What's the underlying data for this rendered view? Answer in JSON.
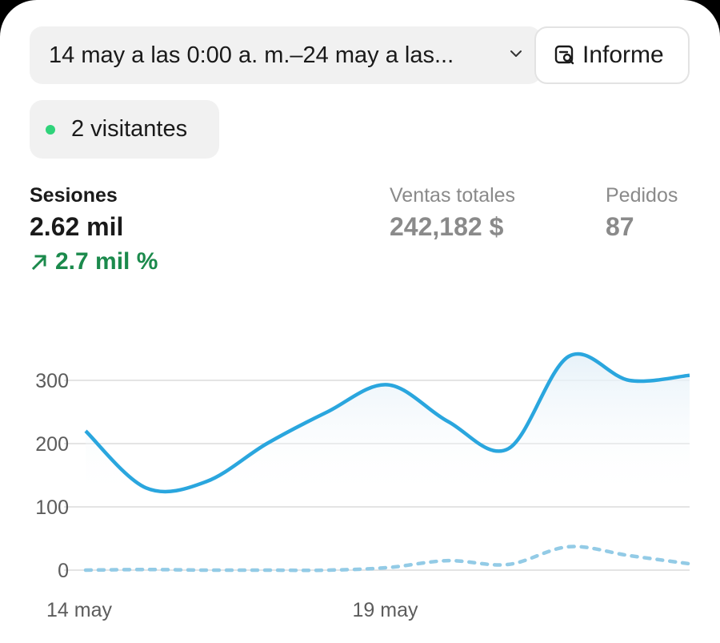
{
  "filters": {
    "date_range": "14 may a las 0:00 a. m.–24 may a las...",
    "report_label": "Informe",
    "visitors_label": "2 visitantes"
  },
  "metrics": [
    {
      "label": "Sesiones",
      "value": "2.62 mil",
      "change": "2.7 mil %",
      "active": true
    },
    {
      "label": "Ventas totales",
      "value": "242,182 $"
    },
    {
      "label": "Pedidos",
      "value": "87"
    }
  ],
  "colors": {
    "primary_line": "#2aa6de",
    "comparison_line": "#93cbe6",
    "trend_up": "#1b8a4c",
    "live_dot": "#2fd37a"
  },
  "chart_data": {
    "type": "line",
    "x": [
      "14 may",
      "15 may",
      "16 may",
      "17 may",
      "18 may",
      "19 may",
      "20 may",
      "21 may",
      "22 may",
      "23 may",
      "24 may"
    ],
    "xticks": [
      "14 may",
      "19 may"
    ],
    "yticks": [
      0,
      100,
      200,
      300
    ],
    "ylim": [
      0,
      340
    ],
    "series": [
      {
        "values": [
          220,
          130,
          140,
          200,
          250,
          293,
          235,
          192,
          338,
          300,
          308
        ],
        "style": "solid"
      },
      {
        "values": [
          0,
          1,
          0,
          0,
          0,
          4,
          15,
          9,
          37,
          23,
          10
        ],
        "style": "dotted"
      }
    ],
    "grid": true
  }
}
